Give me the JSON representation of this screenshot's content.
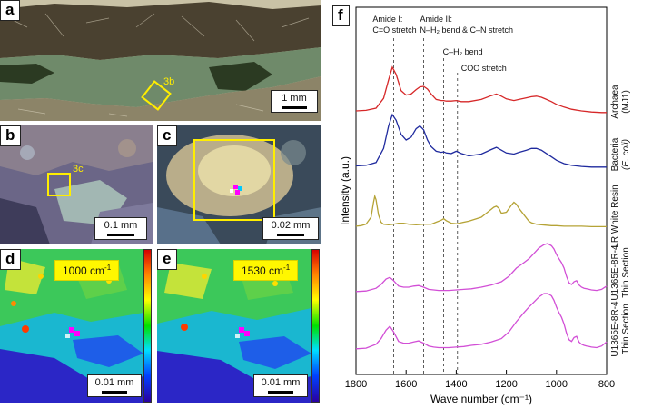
{
  "panels": {
    "a": {
      "label": "a",
      "inset_label": "3b",
      "scale": "1 mm"
    },
    "b": {
      "label": "b",
      "inset_label": "3c",
      "scale": "0.1 mm"
    },
    "c": {
      "label": "c",
      "scale": "0.02 mm"
    },
    "d": {
      "label": "d",
      "wavenumber": "1000 cm",
      "wavenumber_sup": "-1",
      "scale": "0.01 mm"
    },
    "e": {
      "label": "e",
      "wavenumber": "1530 cm",
      "wavenumber_sup": "-1",
      "scale": "0.01 mm"
    },
    "f": {
      "label": "f"
    }
  },
  "chart_data": {
    "type": "line",
    "xlabel": "Wave number (cm⁻¹)",
    "ylabel": "Intensity (a.u.)",
    "xlim": [
      1800,
      800
    ],
    "x_reversed": true,
    "xticks": [
      "1800",
      "1600",
      "1400",
      "1200",
      "1000",
      "800"
    ],
    "annotations": [
      {
        "text1": "Amide I:",
        "text2": "C=O stretch",
        "x": 1650
      },
      {
        "text1": "Amide II:",
        "text2": "N–H₂ bend & C–N stretch",
        "x": 1530
      },
      {
        "text1": "C–H₂ bend",
        "text2": "",
        "x": 1450
      },
      {
        "text1": "COO stretch",
        "text2": "",
        "x": 1395
      }
    ],
    "series": [
      {
        "label1": "Archaea",
        "label2": "(MJ1)",
        "color": "#d62728",
        "x": [
          1800,
          1760,
          1720,
          1690,
          1670,
          1655,
          1640,
          1620,
          1600,
          1580,
          1560,
          1545,
          1530,
          1515,
          1500,
          1480,
          1460,
          1450,
          1440,
          1420,
          1400,
          1380,
          1350,
          1300,
          1260,
          1240,
          1220,
          1200,
          1170,
          1150,
          1120,
          1100,
          1080,
          1060,
          1040,
          1020,
          1000,
          970,
          940,
          900,
          860,
          820,
          800
        ],
        "y": [
          0.05,
          0.06,
          0.1,
          0.28,
          0.62,
          0.85,
          0.72,
          0.42,
          0.34,
          0.36,
          0.44,
          0.49,
          0.5,
          0.45,
          0.36,
          0.26,
          0.24,
          0.24,
          0.23,
          0.23,
          0.24,
          0.22,
          0.22,
          0.26,
          0.33,
          0.36,
          0.32,
          0.27,
          0.24,
          0.26,
          0.29,
          0.31,
          0.32,
          0.3,
          0.26,
          0.22,
          0.17,
          0.12,
          0.08,
          0.05,
          0.03,
          0.02,
          0.02
        ]
      },
      {
        "label1": "Bacteria",
        "label2": "(E. coli)",
        "color": "#1f2a9e",
        "x": [
          1800,
          1760,
          1720,
          1690,
          1670,
          1655,
          1640,
          1620,
          1600,
          1580,
          1560,
          1545,
          1530,
          1515,
          1500,
          1480,
          1460,
          1450,
          1440,
          1420,
          1400,
          1380,
          1350,
          1300,
          1260,
          1240,
          1220,
          1200,
          1170,
          1150,
          1120,
          1100,
          1080,
          1060,
          1040,
          1020,
          1000,
          970,
          940,
          900,
          860,
          820,
          800
        ],
        "y": [
          0.04,
          0.05,
          0.1,
          0.35,
          0.75,
          0.95,
          0.85,
          0.6,
          0.5,
          0.55,
          0.7,
          0.75,
          0.68,
          0.5,
          0.38,
          0.3,
          0.28,
          0.29,
          0.27,
          0.26,
          0.3,
          0.26,
          0.22,
          0.25,
          0.33,
          0.37,
          0.32,
          0.27,
          0.25,
          0.28,
          0.32,
          0.35,
          0.35,
          0.32,
          0.26,
          0.2,
          0.14,
          0.08,
          0.05,
          0.03,
          0.02,
          0.02,
          0.02
        ]
      },
      {
        "label1": "LR White Resin",
        "label2": "",
        "color": "#b5a336",
        "x": [
          1800,
          1780,
          1760,
          1740,
          1730,
          1725,
          1720,
          1710,
          1700,
          1690,
          1670,
          1650,
          1630,
          1610,
          1590,
          1560,
          1530,
          1500,
          1480,
          1460,
          1450,
          1440,
          1420,
          1400,
          1380,
          1350,
          1300,
          1270,
          1250,
          1240,
          1230,
          1220,
          1200,
          1180,
          1170,
          1160,
          1150,
          1130,
          1110,
          1100,
          1080,
          1060,
          1040,
          1020,
          1000,
          970,
          940,
          900,
          860,
          820,
          800
        ],
        "y": [
          0.02,
          0.03,
          0.06,
          0.2,
          0.5,
          0.62,
          0.55,
          0.25,
          0.1,
          0.06,
          0.05,
          0.06,
          0.08,
          0.08,
          0.06,
          0.05,
          0.06,
          0.06,
          0.1,
          0.14,
          0.17,
          0.13,
          0.08,
          0.07,
          0.09,
          0.12,
          0.2,
          0.32,
          0.4,
          0.42,
          0.38,
          0.28,
          0.3,
          0.44,
          0.5,
          0.46,
          0.38,
          0.25,
          0.12,
          0.09,
          0.06,
          0.05,
          0.04,
          0.03,
          0.03,
          0.02,
          0.02,
          0.02,
          0.01,
          0.01,
          0.01
        ]
      },
      {
        "label1": "U1365E-8R-4",
        "label2": "Thin Section",
        "color": "#d24fd6",
        "x": [
          1800,
          1760,
          1720,
          1700,
          1680,
          1665,
          1650,
          1630,
          1610,
          1590,
          1570,
          1550,
          1530,
          1510,
          1490,
          1470,
          1450,
          1430,
          1400,
          1370,
          1340,
          1300,
          1260,
          1220,
          1190,
          1160,
          1130,
          1110,
          1090,
          1070,
          1050,
          1035,
          1020,
          1010,
          1000,
          990,
          980,
          970,
          960,
          950,
          940,
          930,
          920,
          910,
          900,
          890,
          880,
          870,
          860,
          840,
          820,
          800
        ],
        "y": [
          0.02,
          0.03,
          0.08,
          0.15,
          0.25,
          0.28,
          0.22,
          0.12,
          0.1,
          0.1,
          0.12,
          0.13,
          0.1,
          0.06,
          0.05,
          0.04,
          0.04,
          0.04,
          0.05,
          0.06,
          0.07,
          0.1,
          0.14,
          0.2,
          0.3,
          0.45,
          0.55,
          0.62,
          0.72,
          0.82,
          0.88,
          0.9,
          0.86,
          0.8,
          0.7,
          0.62,
          0.55,
          0.45,
          0.3,
          0.18,
          0.15,
          0.2,
          0.22,
          0.14,
          0.1,
          0.08,
          0.07,
          0.06,
          0.05,
          0.04,
          0.06,
          0.12
        ]
      },
      {
        "label1": "U1365E-8R-4",
        "label2": "Thin Section",
        "color": "#d24fd6",
        "x": [
          1800,
          1760,
          1720,
          1700,
          1680,
          1665,
          1650,
          1630,
          1610,
          1590,
          1570,
          1550,
          1530,
          1510,
          1490,
          1470,
          1450,
          1430,
          1400,
          1370,
          1340,
          1300,
          1260,
          1220,
          1190,
          1160,
          1130,
          1110,
          1090,
          1070,
          1050,
          1035,
          1020,
          1010,
          1000,
          990,
          980,
          970,
          960,
          950,
          940,
          930,
          920,
          910,
          900,
          890,
          880,
          870,
          860,
          840,
          820,
          800
        ],
        "y": [
          0.02,
          0.03,
          0.1,
          0.2,
          0.35,
          0.42,
          0.32,
          0.15,
          0.12,
          0.12,
          0.14,
          0.16,
          0.12,
          0.07,
          0.05,
          0.04,
          0.04,
          0.04,
          0.05,
          0.06,
          0.08,
          0.1,
          0.14,
          0.2,
          0.32,
          0.5,
          0.66,
          0.76,
          0.85,
          0.94,
          1.0,
          1.0,
          0.96,
          0.88,
          0.76,
          0.66,
          0.58,
          0.46,
          0.3,
          0.18,
          0.15,
          0.22,
          0.24,
          0.14,
          0.1,
          0.08,
          0.07,
          0.06,
          0.05,
          0.04,
          0.07,
          0.14
        ]
      }
    ]
  }
}
